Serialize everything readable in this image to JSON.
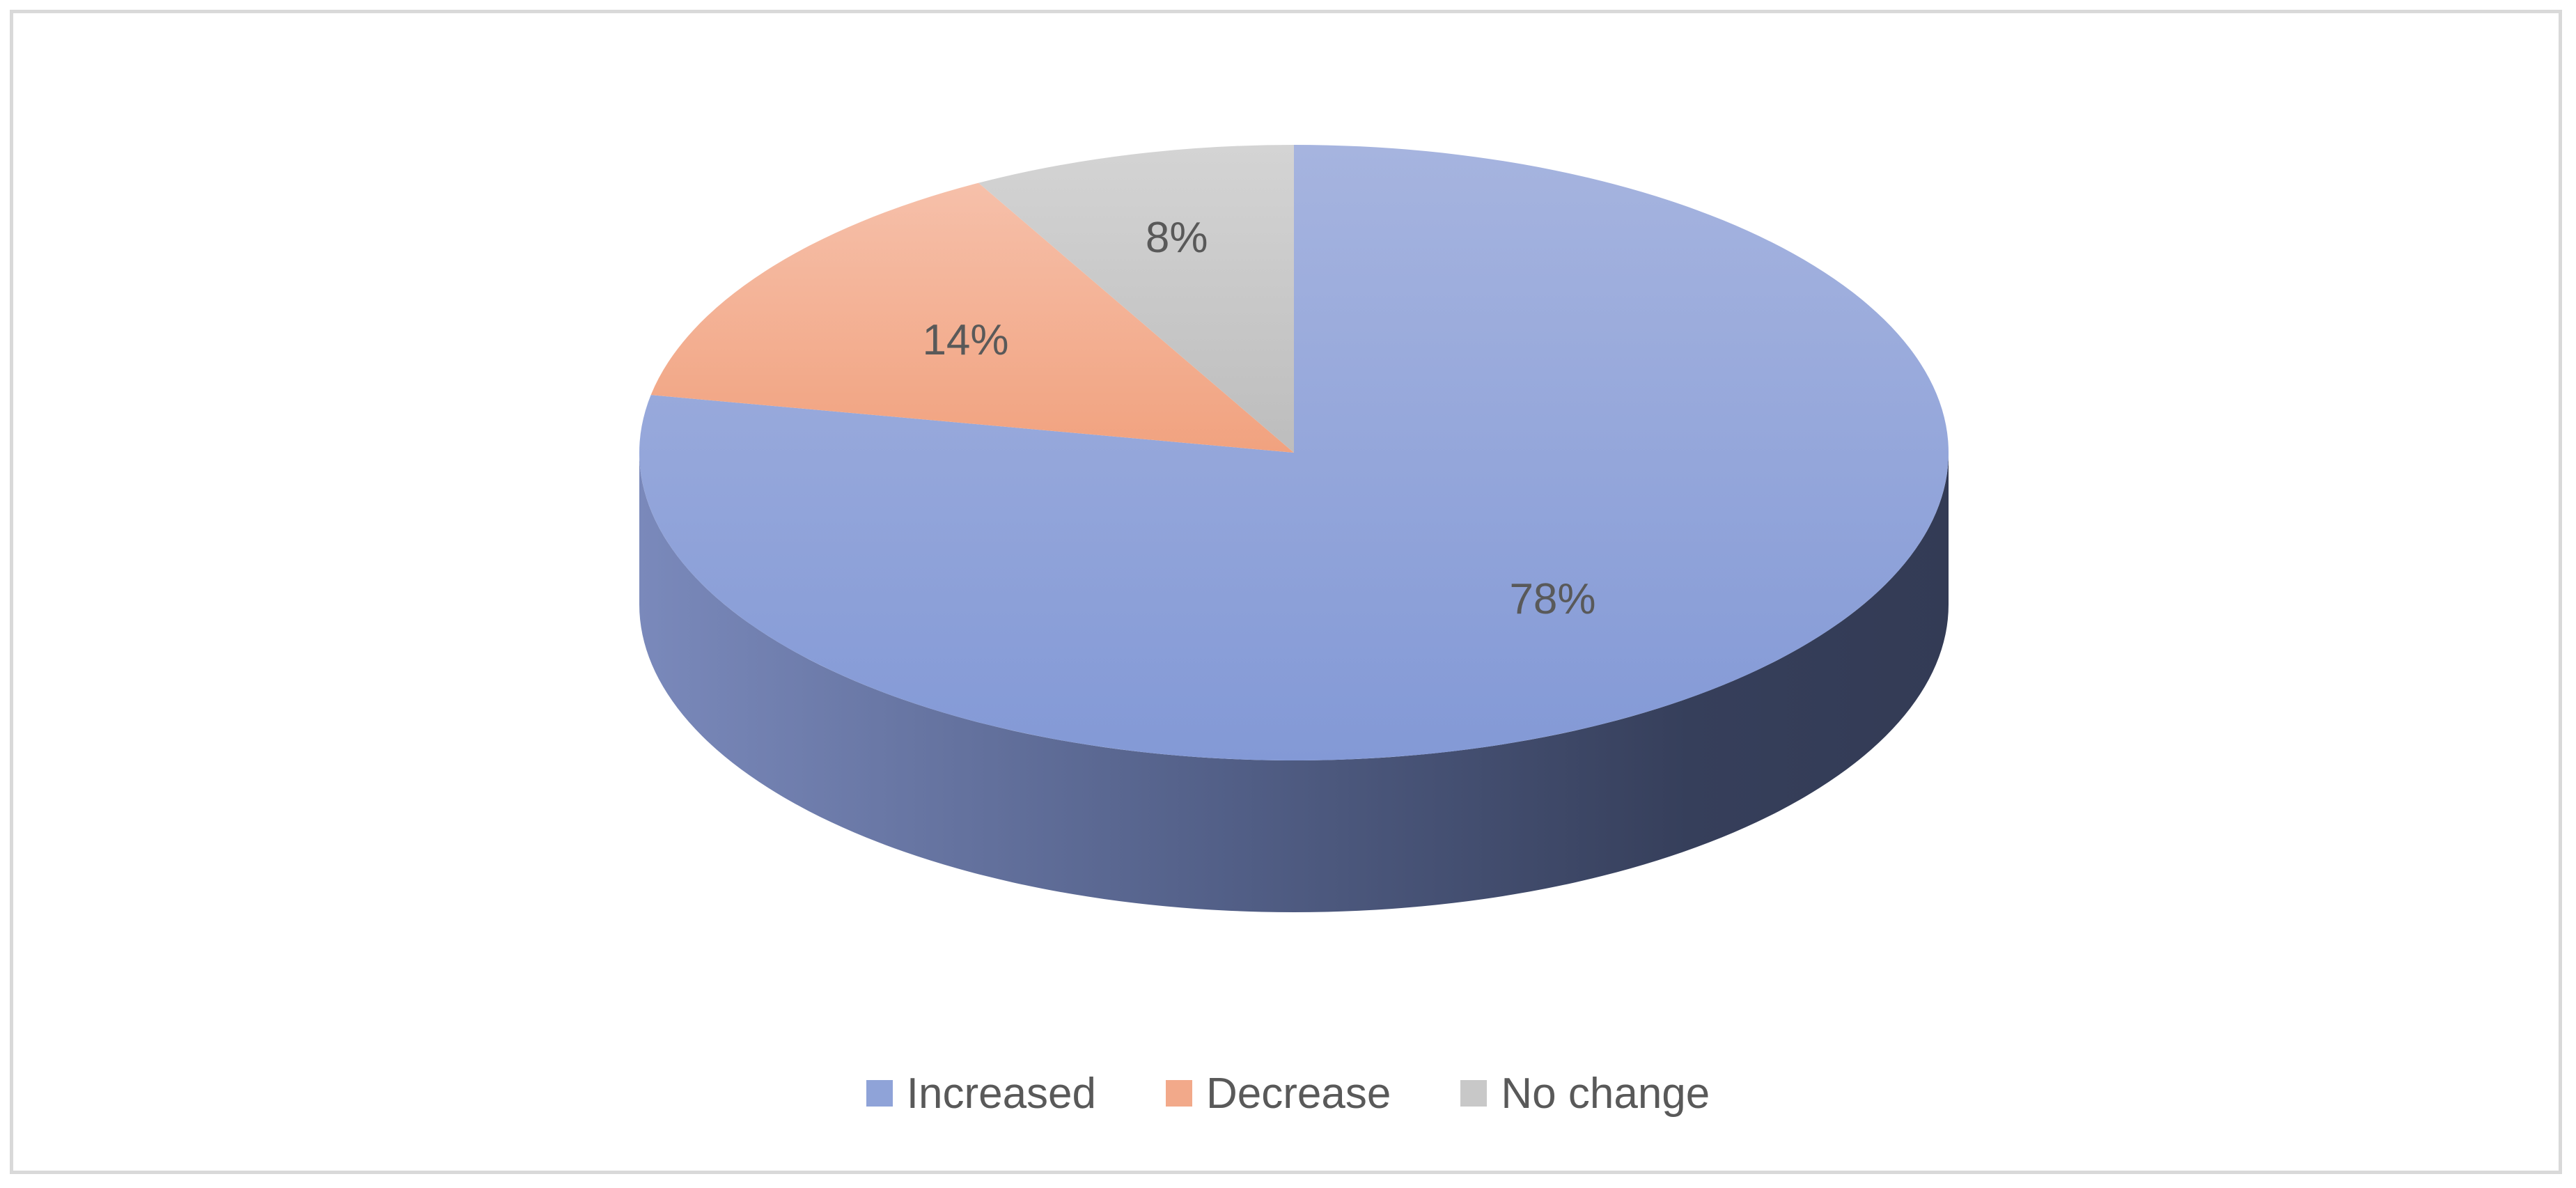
{
  "chart_data": {
    "type": "pie",
    "title": "",
    "categories": [
      "Increased",
      "Decrease",
      "No change"
    ],
    "values": [
      78,
      14,
      8
    ],
    "labels": [
      "78%",
      "14%",
      "8%"
    ],
    "colors": [
      "#8fa3d8",
      "#f2a98a",
      "#c8c8c8"
    ],
    "legend_position": "bottom",
    "style": "3d"
  }
}
